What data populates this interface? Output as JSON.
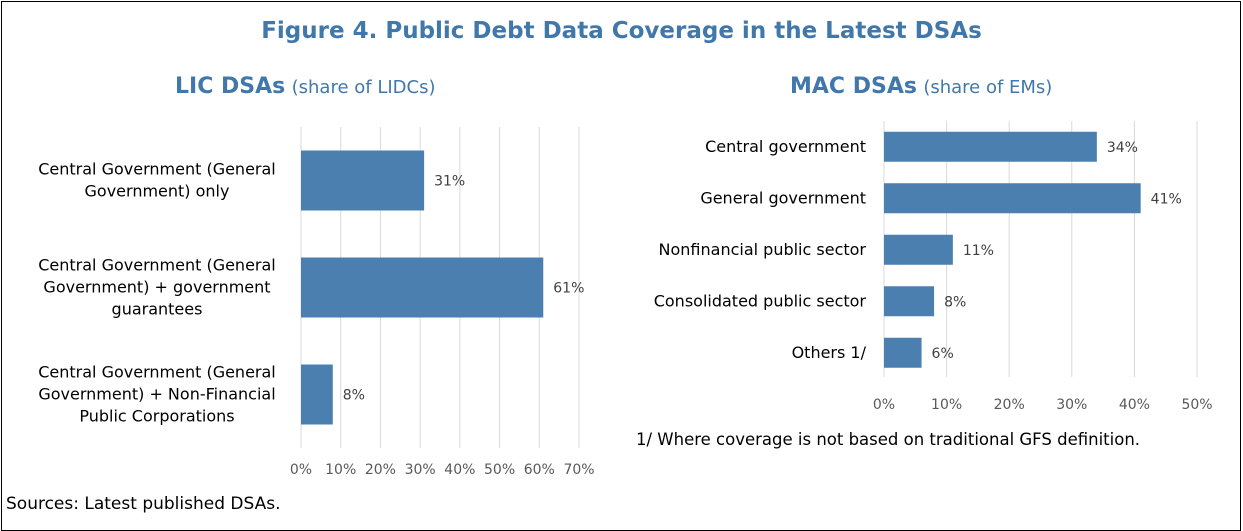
{
  "figure_title": "Figure 4. Public Debt Data Coverage in the Latest DSAs",
  "source_note": "Sources: Latest published DSAs.",
  "footnote": "1/ Where coverage is not based on traditional GFS definition.",
  "colors": {
    "bar": "#4a7fb0",
    "title": "#4178ab",
    "grid": "#d9d9d9"
  },
  "chart_data": [
    {
      "type": "bar",
      "orientation": "horizontal",
      "title_main": "LIC DSAs",
      "title_sub": "(share of LIDCs)",
      "categories": [
        [
          "Central Government (General",
          "Government) only"
        ],
        [
          "Central Government (General",
          "Government) + government",
          "guarantees"
        ],
        [
          "Central Government (General",
          "Government) + Non-Financial",
          "Public Corporations"
        ]
      ],
      "values": [
        31,
        61,
        8
      ],
      "value_labels": [
        "31%",
        "61%",
        "8%"
      ],
      "xlim": [
        0,
        70
      ],
      "ticks": [
        0,
        10,
        20,
        30,
        40,
        50,
        60,
        70
      ],
      "tick_labels": [
        "0%",
        "10%",
        "20%",
        "30%",
        "40%",
        "50%",
        "60%",
        "70%"
      ],
      "grid": true
    },
    {
      "type": "bar",
      "orientation": "horizontal",
      "title_main": "MAC DSAs",
      "title_sub": "(share of EMs)",
      "categories": [
        [
          "Central government"
        ],
        [
          "General government"
        ],
        [
          "Nonfinancial public sector"
        ],
        [
          "Consolidated public sector"
        ],
        [
          "Others 1/"
        ]
      ],
      "values": [
        34,
        41,
        11,
        8,
        6
      ],
      "value_labels": [
        "34%",
        "41%",
        "11%",
        "8%",
        "6%"
      ],
      "xlim": [
        0,
        50
      ],
      "ticks": [
        0,
        10,
        20,
        30,
        40,
        50
      ],
      "tick_labels": [
        "0%",
        "10%",
        "20%",
        "30%",
        "40%",
        "50%"
      ],
      "grid": true
    }
  ]
}
